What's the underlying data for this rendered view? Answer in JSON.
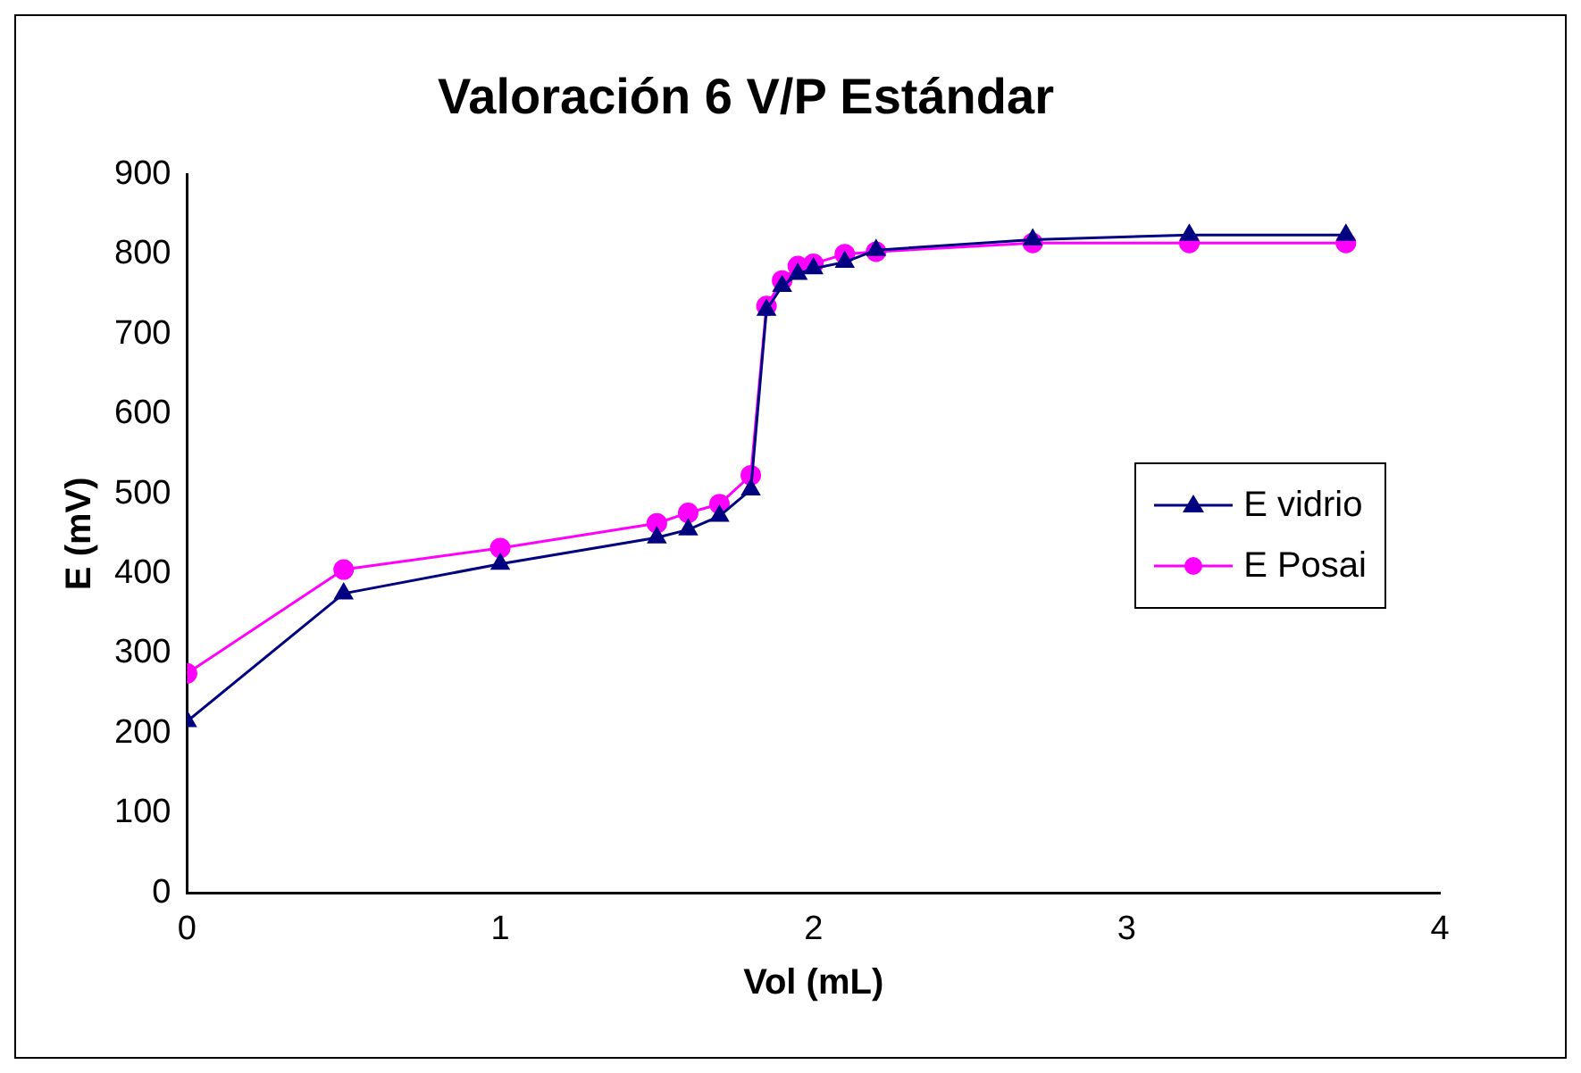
{
  "chart_data": {
    "type": "line",
    "title": "Valoración 6 V/P Estándar",
    "xlabel": "Vol (mL)",
    "ylabel": "E (mV)",
    "x": [
      0,
      0.5,
      1,
      1.5,
      1.6,
      1.7,
      1.8,
      1.85,
      1.9,
      1.95,
      2,
      2.1,
      2.2,
      2.7,
      3.2,
      3.7
    ],
    "series": [
      {
        "name": "E vidrio",
        "color": "#000080",
        "marker": "triangle",
        "values": [
          215,
          375,
          412,
          445,
          455,
          472,
          505,
          730,
          760,
          775,
          782,
          790,
          805,
          818,
          824,
          824
        ]
      },
      {
        "name": "E Posai",
        "color": "#ff00ff",
        "marker": "circle",
        "values": [
          275,
          405,
          432,
          463,
          476,
          487,
          523,
          735,
          767,
          785,
          788,
          800,
          803,
          814,
          814,
          814
        ]
      }
    ],
    "xlim": [
      0,
      4
    ],
    "xticks": [
      0,
      1,
      2,
      3,
      4
    ],
    "ylim": [
      0,
      900
    ],
    "yticks": [
      0,
      100,
      200,
      300,
      400,
      500,
      600,
      700,
      800,
      900
    ],
    "grid": false,
    "legend": "right"
  }
}
